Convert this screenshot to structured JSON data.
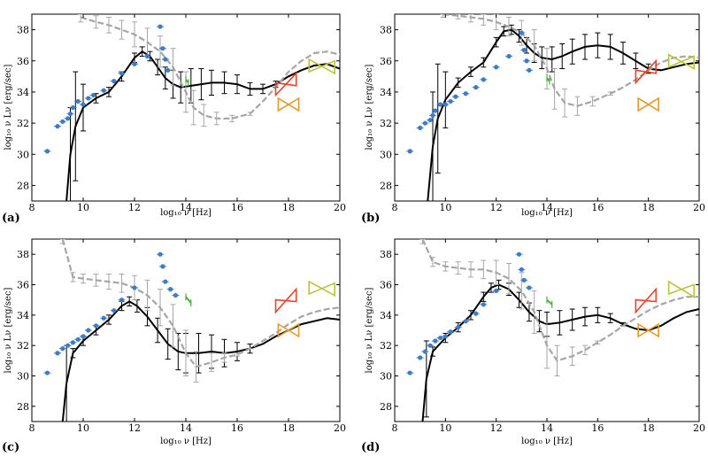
{
  "figure": {
    "xlabel": "log₁₀ ν [Hz]",
    "ylabel": "log₁₀ ν Lν [erg/sec]",
    "colors": {
      "model": "#000000",
      "comparison": "#a6a6a6",
      "observed": "#3d7cc9",
      "green": "#4caf3c",
      "red_bowtie": "#e5432b",
      "orange_bowtie": "#e39a28",
      "yellow_bowtie": "#b8c43a"
    }
  },
  "chart_data": [
    {
      "panel": "(a)",
      "type": "line",
      "xlabel": "log₁₀ ν [Hz]",
      "ylabel": "log₁₀ ν Lν [erg/sec]",
      "xlim": [
        8,
        20
      ],
      "ylim": [
        27,
        39
      ],
      "x_ticks": [
        8,
        10,
        12,
        14,
        16,
        18,
        20
      ],
      "y_ticks": [
        28,
        30,
        32,
        34,
        36,
        38
      ],
      "grid": false,
      "series": [
        {
          "style": "model",
          "x": [
            9.35,
            9.5,
            9.7,
            10.0,
            10.5,
            11.0,
            11.5,
            12.0,
            12.3,
            12.6,
            12.9,
            13.2,
            13.5,
            13.8,
            14.2,
            14.6,
            15.0,
            15.5,
            16.0,
            16.5,
            17.0,
            17.5,
            18.0,
            18.5,
            19.0,
            19.5,
            20.0
          ],
          "y": [
            27.0,
            30.0,
            31.8,
            33.0,
            33.6,
            34.0,
            35.0,
            36.2,
            36.6,
            36.3,
            35.6,
            34.9,
            34.5,
            34.3,
            34.4,
            34.5,
            34.6,
            34.6,
            34.5,
            34.2,
            34.2,
            34.5,
            35.0,
            35.4,
            35.7,
            35.8,
            35.5
          ],
          "errors": [
            0,
            3.0,
            3.5,
            1.5,
            0.3,
            0.3,
            0.3,
            0.3,
            0.3,
            0.3,
            0.5,
            0.7,
            0.9,
            1.0,
            1.1,
            1.0,
            0.8,
            0.7,
            0.6,
            0.4,
            0.3,
            0.2,
            0.0,
            0.0,
            0.0,
            0.0,
            0.0
          ]
        },
        {
          "style": "comparison",
          "x": [
            9.9,
            10.5,
            11.0,
            11.5,
            12.0,
            12.5,
            13.0,
            13.5,
            14.0,
            14.3,
            14.7,
            15.2,
            15.8,
            16.5,
            17.0,
            17.5,
            18.0,
            18.5,
            19.0,
            19.5,
            20.0
          ],
          "y": [
            38.8,
            38.5,
            38.3,
            38.0,
            37.7,
            37.2,
            36.6,
            35.6,
            34.0,
            33.0,
            32.5,
            32.3,
            32.3,
            32.6,
            33.4,
            34.3,
            35.3,
            36.0,
            36.5,
            36.6,
            36.4
          ],
          "errors": [
            0.3,
            0.4,
            0.5,
            0.6,
            0.8,
            0.9,
            1.0,
            1.2,
            1.3,
            1.1,
            0.7,
            0.4,
            0.2,
            0.1,
            0,
            0,
            0,
            0,
            0,
            0,
            0
          ]
        },
        {
          "style": "observed",
          "x": [
            8.6,
            9.0,
            9.2,
            9.4,
            9.5,
            9.6,
            9.8,
            10.0,
            10.2,
            10.4,
            10.8,
            11.2,
            11.5,
            12.0,
            12.5,
            13.0,
            13.1,
            13.2,
            13.3
          ],
          "y": [
            30.2,
            31.8,
            32.1,
            32.3,
            32.6,
            33.0,
            33.4,
            33.2,
            33.6,
            33.8,
            34.1,
            34.7,
            35.2,
            35.8,
            36.3,
            38.2,
            36.8,
            36.1,
            35.4
          ]
        },
        {
          "style": "green",
          "x": [
            14.0,
            14.1
          ],
          "y": [
            34.8,
            34.6
          ]
        }
      ],
      "bowties": [
        {
          "color": "red_bowtie",
          "x": [
            17.5,
            18.3
          ],
          "y": [
            34.2,
            34.8
          ]
        },
        {
          "color": "orange_bowtie",
          "x": [
            17.6,
            18.4
          ],
          "y": [
            33.2,
            33.2
          ]
        },
        {
          "color": "yellow_bowtie",
          "x": [
            18.8,
            19.8
          ],
          "y": [
            35.7,
            35.6
          ]
        }
      ]
    },
    {
      "panel": "(b)",
      "type": "line",
      "xlabel": "log₁₀ ν [Hz]",
      "ylabel": "log₁₀ ν Lν [erg/sec]",
      "xlim": [
        8,
        20
      ],
      "ylim": [
        27,
        39
      ],
      "x_ticks": [
        8,
        10,
        12,
        14,
        16,
        18,
        20
      ],
      "y_ticks": [
        28,
        30,
        32,
        34,
        36,
        38
      ],
      "grid": false,
      "series": [
        {
          "style": "model",
          "x": [
            9.3,
            9.5,
            9.7,
            10.0,
            10.5,
            11.0,
            11.5,
            12.0,
            12.3,
            12.6,
            12.9,
            13.2,
            13.5,
            13.8,
            14.2,
            14.6,
            15.0,
            15.5,
            16.0,
            16.5,
            17.0,
            17.5,
            18.0,
            18.5,
            19.0,
            19.5,
            20.0
          ],
          "y": [
            27.0,
            30.5,
            32.3,
            33.5,
            34.6,
            35.3,
            35.9,
            37.2,
            37.9,
            38.0,
            37.6,
            37.0,
            36.5,
            36.2,
            36.1,
            36.3,
            36.6,
            36.9,
            37.0,
            36.9,
            36.5,
            36.0,
            35.5,
            35.4,
            35.6,
            35.8,
            35.9
          ],
          "errors": [
            0,
            3.5,
            3.5,
            1.8,
            0.3,
            0.3,
            0.3,
            0.3,
            0.3,
            0.3,
            0.4,
            0.5,
            0.6,
            0.7,
            0.8,
            0.8,
            0.8,
            0.8,
            0.8,
            0.8,
            0.7,
            0.5,
            0.3,
            0.0,
            0.0,
            0.0,
            0.0
          ]
        },
        {
          "style": "comparison",
          "x": [
            9.9,
            10.5,
            11.0,
            11.5,
            12.0,
            12.5,
            13.0,
            13.5,
            14.0,
            14.3,
            14.7,
            15.2,
            15.8,
            16.5,
            17.0,
            17.5,
            18.0,
            18.5,
            19.0,
            19.5,
            20.0
          ],
          "y": [
            39.0,
            38.9,
            38.8,
            38.7,
            38.5,
            38.2,
            37.8,
            37.0,
            35.5,
            34.2,
            33.3,
            33.1,
            33.4,
            33.9,
            34.3,
            34.8,
            35.4,
            35.9,
            36.2,
            36.3,
            36.2
          ],
          "errors": [
            0.2,
            0.2,
            0.3,
            0.4,
            0.5,
            0.6,
            0.8,
            1.0,
            1.3,
            1.3,
            0.9,
            0.6,
            0.3,
            0.1,
            0,
            0,
            0,
            0,
            0,
            0,
            0
          ]
        },
        {
          "style": "observed",
          "x": [
            8.6,
            9.0,
            9.2,
            9.4,
            9.5,
            9.6,
            9.8,
            10.0,
            10.2,
            10.4,
            10.8,
            11.2,
            11.5,
            12.0,
            12.5,
            13.0,
            13.1,
            13.2,
            13.3
          ],
          "y": [
            30.2,
            31.7,
            32.0,
            32.2,
            32.5,
            32.8,
            33.2,
            33.2,
            33.4,
            33.7,
            33.9,
            34.3,
            34.8,
            35.6,
            36.3,
            37.8,
            36.7,
            36.0,
            35.4
          ]
        },
        {
          "style": "green",
          "x": [
            14.0,
            14.1
          ],
          "y": [
            34.9,
            34.7
          ]
        }
      ],
      "bowties": [
        {
          "color": "red_bowtie",
          "x": [
            17.5,
            18.3
          ],
          "y": [
            35.0,
            35.6
          ]
        },
        {
          "color": "orange_bowtie",
          "x": [
            17.6,
            18.4
          ],
          "y": [
            33.2,
            33.2
          ]
        },
        {
          "color": "yellow_bowtie",
          "x": [
            18.8,
            19.8
          ],
          "y": [
            36.0,
            35.9
          ]
        }
      ]
    },
    {
      "panel": "(c)",
      "type": "line",
      "xlabel": "log₁₀ ν [Hz]",
      "ylabel": "log₁₀ ν Lν [erg/sec]",
      "xlim": [
        8,
        20
      ],
      "ylim": [
        27,
        39
      ],
      "x_ticks": [
        8,
        10,
        12,
        14,
        16,
        18,
        20
      ],
      "y_ticks": [
        28,
        30,
        32,
        34,
        36,
        38
      ],
      "grid": false,
      "series": [
        {
          "style": "model",
          "x": [
            9.2,
            9.35,
            9.6,
            10.0,
            10.5,
            11.0,
            11.5,
            11.8,
            12.1,
            12.5,
            12.9,
            13.3,
            13.7,
            14.0,
            14.5,
            15.0,
            15.5,
            16.0,
            16.5,
            17.0,
            17.5,
            18.0,
            18.5,
            19.0,
            19.5,
            20.0
          ],
          "y": [
            27.0,
            29.5,
            31.5,
            32.3,
            33.0,
            33.7,
            34.6,
            34.9,
            34.6,
            33.9,
            33.0,
            32.1,
            31.6,
            31.5,
            31.5,
            31.6,
            31.5,
            31.6,
            31.8,
            32.1,
            32.6,
            33.0,
            33.4,
            33.6,
            33.8,
            33.7
          ],
          "errors": [
            0,
            2.5,
            0.3,
            0.3,
            0.3,
            0.3,
            0.3,
            0.3,
            0.4,
            0.6,
            0.8,
            1.0,
            1.2,
            1.3,
            1.3,
            1.1,
            0.9,
            0.6,
            0.3,
            0.0,
            0.0,
            0.0,
            0.0,
            0.0,
            0.0,
            0.0
          ]
        },
        {
          "style": "comparison",
          "x": [
            9.2,
            9.6,
            10.0,
            10.5,
            11.0,
            11.5,
            12.0,
            12.5,
            13.0,
            13.5,
            14.0,
            14.4,
            15.0,
            15.5,
            16.0,
            16.5,
            17.0,
            17.5,
            18.0,
            18.5,
            19.0,
            19.5,
            20.0
          ],
          "y": [
            39.0,
            36.5,
            36.4,
            36.3,
            36.2,
            36.1,
            35.8,
            35.3,
            34.5,
            33.3,
            31.5,
            30.6,
            30.9,
            31.2,
            31.4,
            31.8,
            32.3,
            32.8,
            33.4,
            33.9,
            34.2,
            34.4,
            34.5
          ],
          "errors": [
            0.3,
            0.3,
            0.3,
            0.4,
            0.5,
            0.6,
            0.8,
            1.0,
            1.2,
            1.4,
            1.5,
            1.0,
            0.6,
            0.3,
            0.1,
            0,
            0,
            0,
            0,
            0,
            0,
            0,
            0
          ]
        },
        {
          "style": "observed",
          "x": [
            8.6,
            9.0,
            9.2,
            9.4,
            9.6,
            9.8,
            10.0,
            10.2,
            10.5,
            10.8,
            11.2,
            11.5,
            12.0,
            13.0,
            13.1,
            13.2,
            13.4,
            13.6
          ],
          "y": [
            30.2,
            31.5,
            31.8,
            32.0,
            32.2,
            32.4,
            32.6,
            33.0,
            33.3,
            33.8,
            34.3,
            35.0,
            35.8,
            38.0,
            37.2,
            36.2,
            35.7,
            35.3
          ]
        },
        {
          "style": "green",
          "x": [
            14.0,
            14.2
          ],
          "y": [
            35.2,
            34.8
          ]
        }
      ],
      "bowties": [
        {
          "color": "red_bowtie",
          "x": [
            17.5,
            18.3
          ],
          "y": [
            34.6,
            35.3
          ]
        },
        {
          "color": "orange_bowtie",
          "x": [
            17.6,
            18.4
          ],
          "y": [
            33.0,
            33.0
          ]
        },
        {
          "color": "yellow_bowtie",
          "x": [
            18.8,
            19.8
          ],
          "y": [
            35.8,
            35.7
          ]
        }
      ]
    },
    {
      "panel": "(d)",
      "type": "line",
      "xlabel": "log₁₀ ν [Hz]",
      "ylabel": "log₁₀ ν Lν [erg/sec]",
      "xlim": [
        8,
        20
      ],
      "ylim": [
        27,
        39
      ],
      "x_ticks": [
        8,
        10,
        12,
        14,
        16,
        18,
        20
      ],
      "y_ticks": [
        28,
        30,
        32,
        34,
        36,
        38
      ],
      "grid": false,
      "series": [
        {
          "style": "model",
          "x": [
            9.1,
            9.25,
            9.5,
            10.0,
            10.5,
            11.0,
            11.5,
            11.8,
            12.1,
            12.5,
            12.9,
            13.3,
            13.7,
            14.0,
            14.5,
            15.0,
            15.5,
            16.0,
            16.5,
            17.0,
            17.5,
            18.0,
            18.5,
            19.0,
            19.5,
            20.0
          ],
          "y": [
            27.0,
            29.8,
            31.6,
            32.5,
            33.2,
            34.0,
            35.2,
            35.8,
            36.0,
            35.7,
            35.0,
            34.2,
            33.6,
            33.4,
            33.5,
            33.7,
            33.9,
            34.0,
            33.8,
            33.4,
            33.1,
            33.0,
            33.3,
            33.8,
            34.2,
            34.4
          ],
          "errors": [
            0,
            2.5,
            0.3,
            0.3,
            0.3,
            0.3,
            0.3,
            0.3,
            0.3,
            0.4,
            0.5,
            0.6,
            0.7,
            0.8,
            0.8,
            0.7,
            0.6,
            0.5,
            0.3,
            0.1,
            0.0,
            0.0,
            0.0,
            0.0,
            0.0,
            0.0
          ]
        },
        {
          "style": "comparison",
          "x": [
            9.1,
            9.5,
            10.0,
            10.5,
            11.0,
            11.5,
            12.0,
            12.5,
            13.0,
            13.5,
            14.0,
            14.4,
            15.0,
            15.5,
            16.0,
            16.5,
            17.0,
            17.5,
            18.0,
            18.5,
            19.0,
            19.5,
            20.0
          ],
          "y": [
            39.0,
            37.5,
            37.2,
            37.1,
            37.0,
            37.0,
            36.8,
            36.4,
            35.6,
            34.2,
            32.0,
            31.0,
            31.3,
            31.7,
            32.2,
            32.7,
            33.3,
            33.8,
            34.3,
            34.7,
            35.0,
            35.2,
            35.2
          ],
          "errors": [
            0.3,
            0.3,
            0.3,
            0.4,
            0.5,
            0.6,
            0.8,
            1.0,
            1.2,
            1.4,
            1.5,
            1.0,
            0.6,
            0.3,
            0.1,
            0,
            0,
            0,
            0,
            0,
            0,
            0,
            0
          ]
        },
        {
          "style": "observed",
          "x": [
            8.6,
            9.0,
            9.2,
            9.4,
            9.6,
            9.8,
            10.0,
            10.2,
            10.5,
            10.8,
            11.2,
            11.5,
            12.0,
            12.9,
            13.0,
            13.1,
            13.3
          ],
          "y": [
            30.2,
            31.2,
            31.6,
            32.0,
            32.3,
            32.5,
            32.6,
            32.9,
            33.2,
            33.6,
            34.1,
            34.7,
            35.6,
            38.0,
            37.0,
            36.3,
            35.8
          ]
        },
        {
          "style": "green",
          "x": [
            14.0,
            14.2
          ],
          "y": [
            35.0,
            34.7
          ]
        }
      ],
      "bowties": [
        {
          "color": "red_bowtie",
          "x": [
            17.5,
            18.3
          ],
          "y": [
            34.6,
            35.3
          ]
        },
        {
          "color": "orange_bowtie",
          "x": [
            17.6,
            18.4
          ],
          "y": [
            33.0,
            33.0
          ]
        },
        {
          "color": "yellow_bowtie",
          "x": [
            18.8,
            19.8
          ],
          "y": [
            35.8,
            35.6
          ]
        }
      ]
    }
  ]
}
